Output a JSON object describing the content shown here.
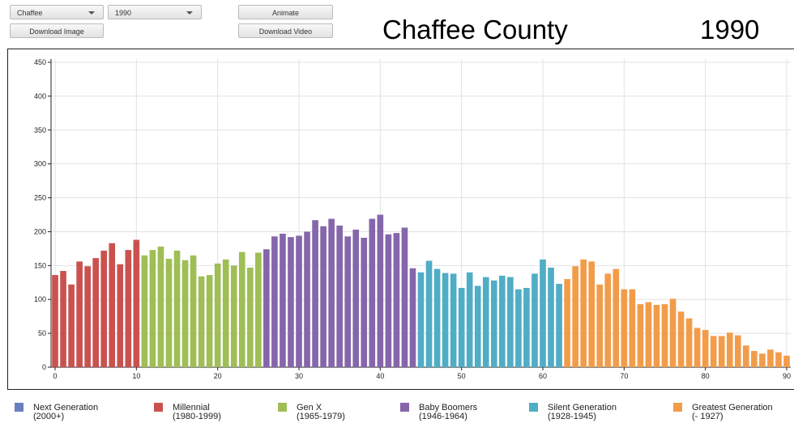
{
  "controls": {
    "county": "Chaffee",
    "year": "1990",
    "animate": "Animate",
    "download_image": "Download Image",
    "download_video": "Download Video"
  },
  "chart_data": {
    "type": "bar",
    "title": "Chaffee County",
    "subtitle": "1990",
    "xlim": [
      -0.5,
      90.5
    ],
    "xticks": [
      0,
      10,
      20,
      30,
      40,
      50,
      60,
      70,
      80,
      90
    ],
    "ylim": [
      0,
      450
    ],
    "yticks": [
      0,
      50,
      100,
      150,
      200,
      250,
      300,
      350,
      400,
      450
    ],
    "grid": true,
    "series": [
      {
        "name": "Next Generation",
        "years": "(2000+)",
        "color": "#6a7fc0",
        "x": [],
        "values": []
      },
      {
        "name": "Millennial",
        "years": "(1980-1999)",
        "color": "#c9524f",
        "x": [
          0,
          1,
          2,
          3,
          4,
          5,
          6,
          7,
          8,
          9,
          10
        ],
        "values": [
          136,
          142,
          122,
          156,
          149,
          161,
          172,
          183,
          152,
          173,
          188
        ]
      },
      {
        "name": "Gen X",
        "years": "(1965-1979)",
        "color": "#9fbe55",
        "x": [
          11,
          12,
          13,
          14,
          15,
          16,
          17,
          18,
          19,
          20,
          21,
          22,
          23,
          24,
          25
        ],
        "values": [
          165,
          173,
          178,
          160,
          172,
          158,
          165,
          134,
          136,
          153,
          159,
          150,
          170,
          147,
          169
        ]
      },
      {
        "name": "Baby Boomers",
        "years": "(1946-1964)",
        "color": "#8566aa",
        "x": [
          26,
          27,
          28,
          29,
          30,
          31,
          32,
          33,
          34,
          35,
          36,
          37,
          38,
          39,
          40,
          41,
          42,
          43,
          44
        ],
        "values": [
          174,
          193,
          197,
          192,
          194,
          200,
          217,
          208,
          219,
          209,
          193,
          203,
          191,
          219,
          225,
          196,
          198,
          206,
          146
        ]
      },
      {
        "name": "Silent Generation",
        "years": "(1928-1945)",
        "color": "#4fadc5",
        "x": [
          45,
          46,
          47,
          48,
          49,
          50,
          51,
          52,
          53,
          54,
          55,
          56,
          57,
          58,
          59,
          60,
          61,
          62
        ],
        "values": [
          140,
          157,
          145,
          139,
          138,
          117,
          140,
          120,
          133,
          128,
          135,
          133,
          115,
          117,
          138,
          159,
          147,
          123
        ]
      },
      {
        "name": "Greatest Generation",
        "years": "(- 1927)",
        "color": "#f29c4a",
        "x": [
          63,
          64,
          65,
          66,
          67,
          68,
          69,
          70,
          71,
          72,
          73,
          74,
          75,
          76,
          77,
          78,
          79,
          80,
          81,
          82,
          83,
          84,
          85,
          86,
          87,
          88,
          89,
          90
        ],
        "values": [
          130,
          149,
          159,
          156,
          122,
          138,
          145,
          115,
          115,
          93,
          96,
          92,
          93,
          101,
          82,
          72,
          58,
          55,
          46,
          46,
          51,
          47,
          32,
          24,
          20,
          26,
          22,
          17
        ]
      }
    ]
  }
}
